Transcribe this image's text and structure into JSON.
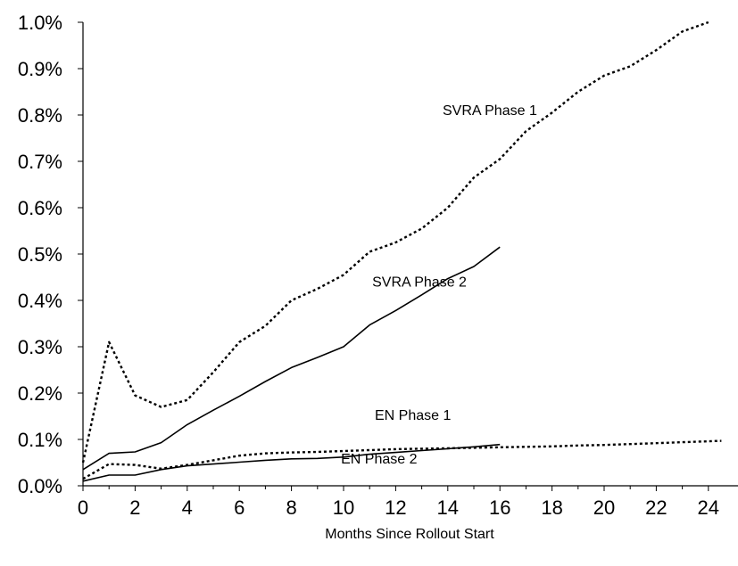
{
  "chart_data": {
    "type": "line",
    "title": "",
    "xlabel": "Months Since Rollout Start",
    "ylabel": "",
    "xlim": [
      0,
      24.5
    ],
    "ylim": [
      0,
      1.0
    ],
    "x_ticks": [
      0,
      2,
      4,
      6,
      8,
      10,
      12,
      14,
      16,
      18,
      20,
      22,
      24
    ],
    "y_ticks": [
      0,
      0.1,
      0.2,
      0.3,
      0.4,
      0.5,
      0.6,
      0.7,
      0.8,
      0.9,
      1.0
    ],
    "y_tick_labels": [
      "0.0%",
      "0.1%",
      "0.2%",
      "0.3%",
      "0.4%",
      "0.5%",
      "0.6%",
      "0.7%",
      "0.8%",
      "0.9%",
      "1.0%"
    ],
    "grid": false,
    "legend": "none",
    "series": [
      {
        "name": "SVRA Phase 1",
        "style": "dotted",
        "label_at": [
          13.8,
          0.8
        ],
        "x": [
          0,
          1,
          2,
          3,
          4,
          5,
          6,
          7,
          8,
          9,
          10,
          11,
          12,
          13,
          14,
          15,
          16,
          17,
          18,
          19,
          20,
          21,
          22,
          23,
          24
        ],
        "values": [
          0.05,
          0.31,
          0.195,
          0.17,
          0.185,
          0.245,
          0.31,
          0.345,
          0.4,
          0.425,
          0.455,
          0.505,
          0.525,
          0.555,
          0.6,
          0.665,
          0.705,
          0.765,
          0.805,
          0.85,
          0.885,
          0.905,
          0.94,
          0.98,
          1.0
        ]
      },
      {
        "name": "SVRA Phase 2",
        "style": "solid",
        "label_at": [
          11.1,
          0.43
        ],
        "x": [
          0,
          1,
          2,
          3,
          4,
          5,
          6,
          7,
          8,
          9,
          10,
          11,
          12,
          13,
          14,
          15,
          16
        ],
        "values": [
          0.035,
          0.07,
          0.073,
          0.093,
          0.132,
          0.163,
          0.193,
          0.225,
          0.255,
          0.277,
          0.3,
          0.347,
          0.378,
          0.412,
          0.447,
          0.473,
          0.515
        ]
      },
      {
        "name": "EN Phase 1",
        "style": "dotted",
        "label_at": [
          11.2,
          0.142
        ],
        "x": [
          0,
          1,
          2,
          3,
          4,
          5,
          6,
          7,
          8,
          9,
          10,
          11,
          12,
          13,
          14,
          15,
          16,
          17,
          18,
          19,
          20,
          21,
          22,
          23,
          24,
          24.5
        ],
        "values": [
          0.015,
          0.047,
          0.045,
          0.037,
          0.045,
          0.055,
          0.065,
          0.07,
          0.072,
          0.073,
          0.075,
          0.077,
          0.079,
          0.08,
          0.081,
          0.082,
          0.083,
          0.084,
          0.085,
          0.087,
          0.088,
          0.09,
          0.092,
          0.094,
          0.096,
          0.097
        ]
      },
      {
        "name": "EN Phase 2",
        "style": "solid",
        "label_at": [
          9.9,
          0.048
        ],
        "x": [
          0,
          1,
          2,
          3,
          4,
          5,
          6,
          7,
          8,
          9,
          10,
          11,
          12,
          13,
          14,
          15,
          16
        ],
        "values": [
          0.01,
          0.023,
          0.023,
          0.035,
          0.043,
          0.047,
          0.051,
          0.055,
          0.058,
          0.059,
          0.062,
          0.068,
          0.072,
          0.076,
          0.08,
          0.084,
          0.089
        ]
      }
    ]
  }
}
